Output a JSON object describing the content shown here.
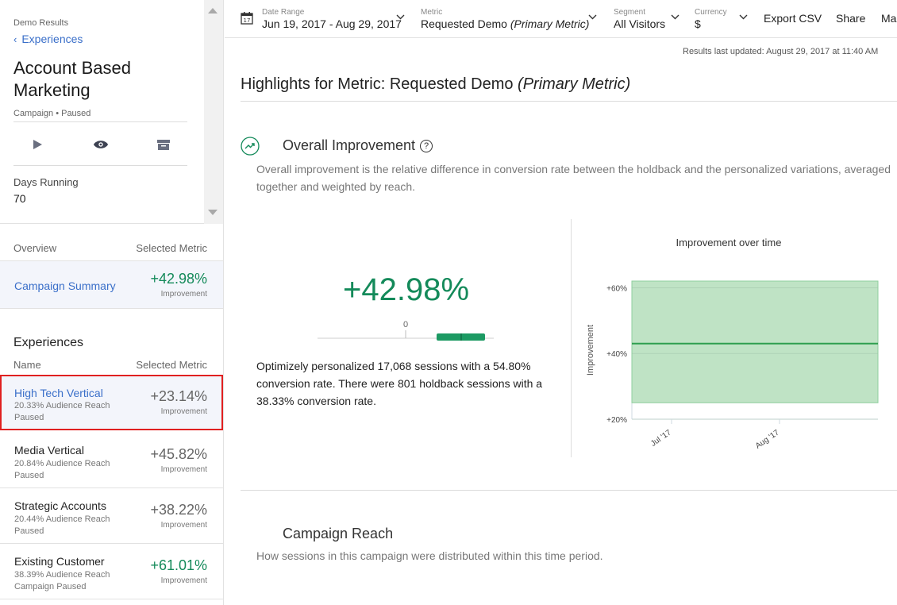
{
  "sidebar": {
    "crumb": "Demo Results",
    "back_label": "Experiences",
    "title": "Account Based Marketing",
    "subtitle": "Campaign • Paused",
    "days_label": "Days Running",
    "days_value": "70",
    "overview_header": "Overview",
    "selected_metric_header": "Selected Metric",
    "summary": {
      "name": "Campaign Summary",
      "value": "+42.98%",
      "label": "Improvement"
    },
    "experiences_title": "Experiences",
    "name_header": "Name",
    "experiences": [
      {
        "name": "High Tech Vertical",
        "reach": "20.33% Audience Reach",
        "status": "Paused",
        "value": "+23.14%",
        "label": "Improvement",
        "color": "#666666"
      },
      {
        "name": "Media Vertical",
        "reach": "20.84% Audience Reach",
        "status": "Paused",
        "value": "+45.82%",
        "label": "Improvement",
        "color": "#666666"
      },
      {
        "name": "Strategic Accounts",
        "reach": "20.44% Audience Reach",
        "status": "Paused",
        "value": "+38.22%",
        "label": "Improvement",
        "color": "#666666"
      },
      {
        "name": "Existing Customer",
        "reach": "38.39% Audience Reach",
        "status": "Campaign Paused",
        "value": "+61.01%",
        "label": "Improvement",
        "color": "#148a5a"
      }
    ]
  },
  "topbar": {
    "date_range_label": "Date Range",
    "date_range_value": "Jun 19, 2017 - Aug 29, 2017",
    "metric_label": "Metric",
    "metric_value": "Requested Demo",
    "metric_suffix": "(Primary Metric)",
    "segment_label": "Segment",
    "segment_value": "All Visitors",
    "currency_label": "Currency",
    "currency_value": "$",
    "export_label": "Export CSV",
    "share_label": "Share",
    "more_label": "Man"
  },
  "main": {
    "updated": "Results last updated: August 29, 2017 at 11:40 AM",
    "highlights_prefix": "Highlights for Metric: Requested Demo",
    "highlights_suffix": "(Primary Metric)",
    "oi_title": "Overall Improvement",
    "oi_help": "?",
    "oi_desc": "Overall improvement is the relative difference in conversion rate between the holdback and the personalized variations, averaged together and weighted by reach.",
    "big_value": "+42.98%",
    "zero_label": "0",
    "summary_text": "Optimizely personalized 17,068 sessions with a 54.80% conversion rate. There were 801 holdback sessions with a 38.33% conversion rate.",
    "reach_title": "Campaign Reach",
    "reach_desc": "How sessions in this campaign were distributed within this time period."
  },
  "chart_data": {
    "type": "area",
    "title": "Improvement over time",
    "ylabel": "Improvement",
    "yticks": [
      "+60%",
      "+40%",
      "+20%"
    ],
    "ylim": [
      20,
      62
    ],
    "xticks": [
      "Jul '17",
      "Aug '17"
    ],
    "x": [
      "2017-06-19",
      "2017-08-29"
    ],
    "series": [
      {
        "values": [
          43,
          43
        ],
        "lower": [
          25,
          25
        ],
        "upper": [
          62,
          62
        ]
      }
    ],
    "colors": {
      "band": "#bfe3c5",
      "line": "#2e9e4f"
    }
  }
}
